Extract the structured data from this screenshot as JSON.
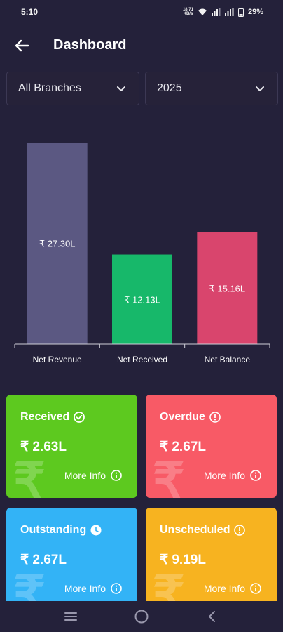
{
  "status_bar": {
    "time": "5:10",
    "net_speed_top": "18.71",
    "net_speed_bottom": "KB/s",
    "battery": "29%",
    "icons": [
      "wifi-icon",
      "signal-icon",
      "signal-icon",
      "battery-icon"
    ]
  },
  "header": {
    "title": "Dashboard",
    "back_icon": "arrow-left-icon"
  },
  "filters": {
    "branch": "All Branches",
    "year": "2025"
  },
  "chart_data": {
    "type": "bar",
    "categories": [
      "Net Revenue",
      "Net Received",
      "Net Balance"
    ],
    "values": [
      27.3,
      12.13,
      15.16
    ],
    "data_labels": [
      "₹ 27.30L",
      "₹ 12.13L",
      "₹ 15.16L"
    ],
    "colors": [
      "#5b5882",
      "#17b86a",
      "#d9456d"
    ],
    "ylim": [
      0,
      29.5
    ],
    "grid": false
  },
  "cards": {
    "received": {
      "title": "Received",
      "value": "₹ 2.63L",
      "more": "More Info",
      "icon": "check-circle-icon",
      "color": "#5dc91f"
    },
    "overdue": {
      "title": "Overdue",
      "value": "₹ 2.67L",
      "more": "More Info",
      "icon": "alert-circle-icon",
      "color": "#f85a66"
    },
    "outstanding": {
      "title": "Outstanding",
      "value": "₹ 2.67L",
      "more": "More Info",
      "icon": "clock-icon",
      "color": "#33b3f6"
    },
    "unscheduled": {
      "title": "Unscheduled",
      "value": "₹ 9.19L",
      "more": "More Info",
      "icon": "alert-circle-icon",
      "color": "#f7b320"
    }
  },
  "watermark_symbol": "₹",
  "nav": [
    "menu-icon",
    "home-circle-icon",
    "back-chevron-icon"
  ]
}
